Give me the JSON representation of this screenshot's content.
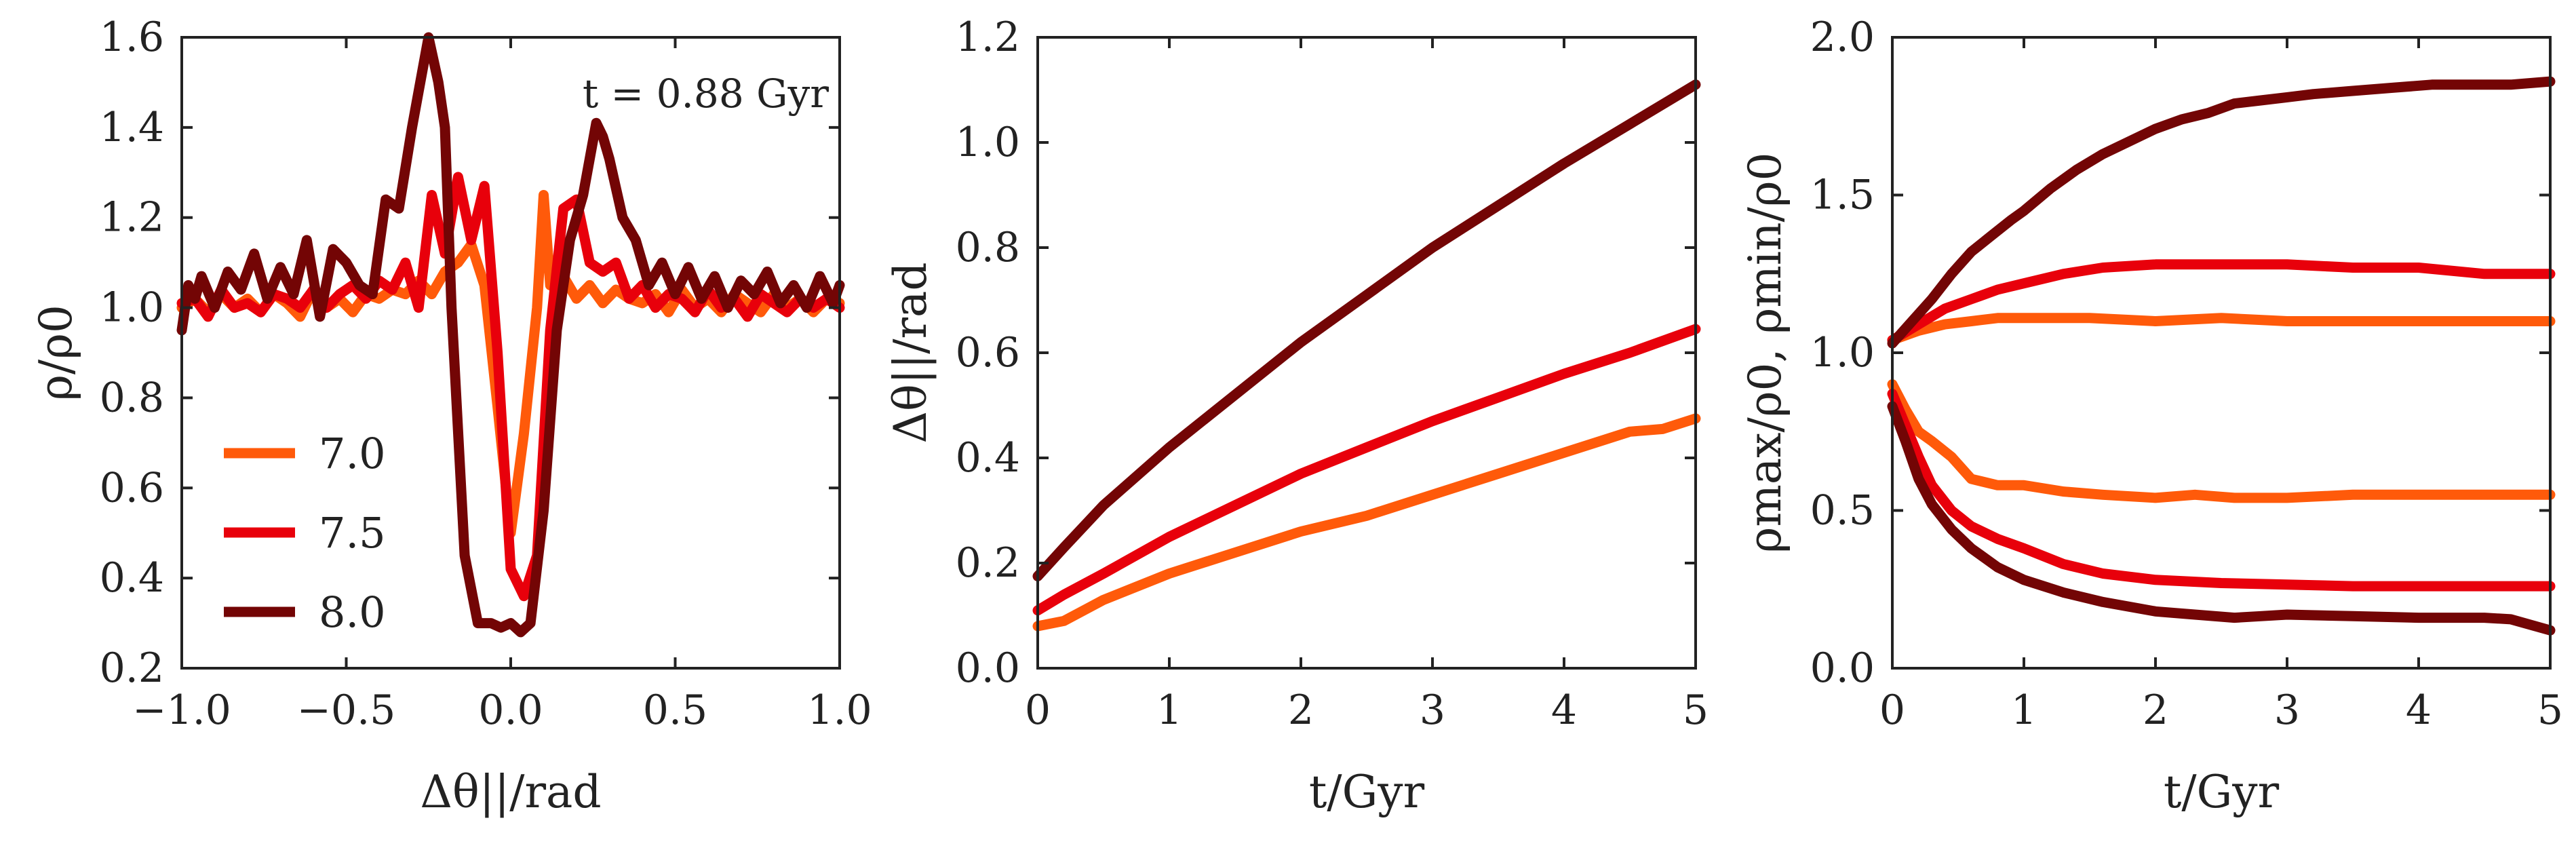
{
  "chart_data": [
    {
      "type": "line",
      "xlabel": "Δθ||/rad",
      "ylabel": "ρ/ρ0",
      "xlim": [
        -1.0,
        1.0
      ],
      "ylim": [
        0.2,
        1.6
      ],
      "xticks": [
        "−1.0",
        "−0.5",
        "0.0",
        "0.5",
        "1.0"
      ],
      "yticks": [
        "0.2",
        "0.4",
        "0.6",
        "0.8",
        "1.0",
        "1.2",
        "1.4",
        "1.6"
      ],
      "annotation": "t = 0.88 Gyr",
      "legend_position": "lower-left",
      "grid": false,
      "series": [
        {
          "name": "7.0",
          "color": "#ff5a0a",
          "x": [
            -1.0,
            -0.96,
            -0.92,
            -0.88,
            -0.84,
            -0.8,
            -0.76,
            -0.72,
            -0.68,
            -0.64,
            -0.6,
            -0.56,
            -0.52,
            -0.48,
            -0.44,
            -0.4,
            -0.36,
            -0.32,
            -0.28,
            -0.24,
            -0.2,
            -0.16,
            -0.12,
            -0.08,
            -0.04,
            0.0,
            0.04,
            0.08,
            0.1,
            0.12,
            0.16,
            0.2,
            0.24,
            0.28,
            0.32,
            0.36,
            0.4,
            0.44,
            0.48,
            0.52,
            0.56,
            0.6,
            0.64,
            0.68,
            0.72,
            0.76,
            0.8,
            0.84,
            0.88,
            0.92,
            0.96,
            1.0
          ],
          "y": [
            1.0,
            1.02,
            0.99,
            1.03,
            1.0,
            1.02,
            0.99,
            1.03,
            1.01,
            0.98,
            1.04,
            1.0,
            1.02,
            0.99,
            1.03,
            1.02,
            1.04,
            1.03,
            1.06,
            1.03,
            1.08,
            1.1,
            1.14,
            1.05,
            0.78,
            0.5,
            0.72,
            1.0,
            1.25,
            1.05,
            1.07,
            1.02,
            1.05,
            1.01,
            1.04,
            1.02,
            1.01,
            1.03,
            0.99,
            1.04,
            1.0,
            1.02,
            0.99,
            1.03,
            1.01,
            0.99,
            1.03,
            1.0,
            1.02,
            0.99,
            1.02,
            1.01
          ]
        },
        {
          "name": "7.5",
          "color": "#e8000b",
          "x": [
            -1.0,
            -0.96,
            -0.92,
            -0.88,
            -0.84,
            -0.8,
            -0.76,
            -0.72,
            -0.68,
            -0.64,
            -0.6,
            -0.56,
            -0.52,
            -0.48,
            -0.44,
            -0.4,
            -0.36,
            -0.32,
            -0.28,
            -0.24,
            -0.2,
            -0.16,
            -0.12,
            -0.08,
            -0.04,
            0.0,
            0.04,
            0.08,
            0.12,
            0.16,
            0.2,
            0.24,
            0.28,
            0.32,
            0.36,
            0.4,
            0.44,
            0.48,
            0.52,
            0.56,
            0.6,
            0.64,
            0.68,
            0.72,
            0.76,
            0.8,
            0.84,
            0.88,
            0.92,
            0.96,
            1.0
          ],
          "y": [
            1.01,
            1.02,
            0.98,
            1.04,
            1.0,
            1.01,
            0.99,
            1.03,
            1.02,
            1.0,
            1.04,
            1.0,
            1.03,
            1.05,
            1.02,
            1.06,
            1.04,
            1.1,
            1.0,
            1.25,
            1.12,
            1.29,
            1.15,
            1.27,
            0.9,
            0.42,
            0.36,
            0.45,
            0.95,
            1.22,
            1.24,
            1.1,
            1.08,
            1.1,
            1.02,
            1.05,
            1.0,
            1.03,
            1.02,
            0.99,
            1.04,
            1.0,
            1.02,
            0.98,
            1.03,
            1.01,
            0.99,
            1.02,
            1.0,
            1.02,
            1.0
          ]
        },
        {
          "name": "8.0",
          "color": "#730505",
          "x": [
            -1.0,
            -0.98,
            -0.96,
            -0.94,
            -0.9,
            -0.86,
            -0.82,
            -0.78,
            -0.74,
            -0.7,
            -0.66,
            -0.62,
            -0.58,
            -0.54,
            -0.5,
            -0.46,
            -0.42,
            -0.38,
            -0.34,
            -0.3,
            -0.28,
            -0.25,
            -0.22,
            -0.2,
            -0.18,
            -0.14,
            -0.1,
            -0.06,
            -0.03,
            0.0,
            0.03,
            0.06,
            0.1,
            0.14,
            0.18,
            0.22,
            0.26,
            0.28,
            0.3,
            0.34,
            0.38,
            0.42,
            0.46,
            0.5,
            0.54,
            0.58,
            0.62,
            0.66,
            0.7,
            0.74,
            0.78,
            0.82,
            0.86,
            0.9,
            0.94,
            0.98,
            1.0
          ],
          "y": [
            0.95,
            1.05,
            1.02,
            1.07,
            1.0,
            1.08,
            1.04,
            1.12,
            1.02,
            1.09,
            1.03,
            1.15,
            0.98,
            1.13,
            1.1,
            1.05,
            1.03,
            1.24,
            1.22,
            1.4,
            1.48,
            1.6,
            1.5,
            1.4,
            1.0,
            0.45,
            0.3,
            0.3,
            0.29,
            0.3,
            0.28,
            0.3,
            0.55,
            0.95,
            1.15,
            1.25,
            1.41,
            1.38,
            1.33,
            1.2,
            1.15,
            1.05,
            1.1,
            1.03,
            1.09,
            1.02,
            1.07,
            1.0,
            1.06,
            1.03,
            1.08,
            1.01,
            1.05,
            1.0,
            1.07,
            1.01,
            1.05
          ]
        }
      ]
    },
    {
      "type": "line",
      "xlabel": "t/Gyr",
      "ylabel": "Δθ||/rad",
      "xlim": [
        0,
        5
      ],
      "ylim": [
        0.0,
        1.2
      ],
      "xticks": [
        "0",
        "1",
        "2",
        "3",
        "4",
        "5"
      ],
      "yticks": [
        "0.0",
        "0.2",
        "0.4",
        "0.6",
        "0.8",
        "1.0",
        "1.2"
      ],
      "grid": false,
      "series": [
        {
          "color": "#ff5a0a",
          "x": [
            0,
            0.2,
            0.5,
            1.0,
            1.5,
            2.0,
            2.5,
            3.0,
            3.5,
            4.0,
            4.5,
            4.75,
            5.0
          ],
          "y": [
            0.08,
            0.09,
            0.13,
            0.18,
            0.22,
            0.26,
            0.29,
            0.33,
            0.37,
            0.41,
            0.45,
            0.455,
            0.475
          ]
        },
        {
          "color": "#e8000b",
          "x": [
            0,
            0.2,
            0.5,
            1.0,
            1.5,
            2.0,
            2.5,
            3.0,
            3.5,
            4.0,
            4.5,
            5.0
          ],
          "y": [
            0.11,
            0.14,
            0.18,
            0.25,
            0.31,
            0.37,
            0.42,
            0.47,
            0.515,
            0.56,
            0.6,
            0.645
          ]
        },
        {
          "color": "#730505",
          "x": [
            0,
            0.2,
            0.5,
            1.0,
            1.5,
            2.0,
            2.5,
            3.0,
            3.5,
            4.0,
            4.5,
            5.0
          ],
          "y": [
            0.175,
            0.23,
            0.31,
            0.42,
            0.52,
            0.62,
            0.71,
            0.8,
            0.88,
            0.96,
            1.035,
            1.11
          ]
        }
      ]
    },
    {
      "type": "line",
      "xlabel": "t/Gyr",
      "ylabel": "ρmax/ρ0, ρmin/ρ0",
      "xlim": [
        0,
        5
      ],
      "ylim": [
        0.0,
        2.0
      ],
      "xticks": [
        "0",
        "1",
        "2",
        "3",
        "4",
        "5"
      ],
      "yticks": [
        "0.0",
        "0.5",
        "1.0",
        "1.5",
        "2.0"
      ],
      "grid": false,
      "series": [
        {
          "color": "#ff5a0a",
          "x": [
            0,
            0.2,
            0.4,
            0.6,
            0.8,
            1.0,
            1.5,
            2.0,
            2.5,
            3.0,
            3.5,
            4.0,
            4.5,
            5.0
          ],
          "y": [
            1.04,
            1.07,
            1.09,
            1.1,
            1.11,
            1.11,
            1.11,
            1.1,
            1.11,
            1.1,
            1.1,
            1.1,
            1.1,
            1.1
          ]
        },
        {
          "color": "#e8000b",
          "x": [
            0,
            0.2,
            0.4,
            0.6,
            0.8,
            1.0,
            1.3,
            1.6,
            2.0,
            2.5,
            3.0,
            3.5,
            4.0,
            4.5,
            5.0
          ],
          "y": [
            1.04,
            1.09,
            1.14,
            1.17,
            1.2,
            1.22,
            1.25,
            1.27,
            1.28,
            1.28,
            1.28,
            1.27,
            1.27,
            1.25,
            1.25
          ]
        },
        {
          "color": "#730505",
          "x": [
            0,
            0.15,
            0.3,
            0.45,
            0.6,
            0.75,
            0.9,
            1.0,
            1.2,
            1.4,
            1.6,
            1.8,
            2.0,
            2.2,
            2.4,
            2.6,
            2.8,
            3.0,
            3.2,
            3.5,
            3.8,
            4.1,
            4.4,
            4.7,
            5.0
          ],
          "y": [
            1.03,
            1.1,
            1.17,
            1.25,
            1.32,
            1.37,
            1.42,
            1.45,
            1.52,
            1.58,
            1.63,
            1.67,
            1.71,
            1.74,
            1.76,
            1.79,
            1.8,
            1.81,
            1.82,
            1.83,
            1.84,
            1.85,
            1.85,
            1.85,
            1.86
          ]
        },
        {
          "color": "#ff5a0a",
          "x": [
            0,
            0.1,
            0.2,
            0.3,
            0.45,
            0.6,
            0.8,
            1.0,
            1.3,
            1.6,
            2.0,
            2.3,
            2.6,
            3.0,
            3.5,
            4.0,
            4.5,
            5.0
          ],
          "y": [
            0.9,
            0.82,
            0.75,
            0.72,
            0.67,
            0.6,
            0.58,
            0.58,
            0.56,
            0.55,
            0.54,
            0.55,
            0.54,
            0.54,
            0.55,
            0.55,
            0.55,
            0.55
          ]
        },
        {
          "color": "#e8000b",
          "x": [
            0,
            0.1,
            0.2,
            0.3,
            0.45,
            0.6,
            0.8,
            1.0,
            1.3,
            1.6,
            2.0,
            2.5,
            3.0,
            3.5,
            4.0,
            4.5,
            5.0
          ],
          "y": [
            0.87,
            0.77,
            0.67,
            0.58,
            0.5,
            0.45,
            0.41,
            0.38,
            0.33,
            0.3,
            0.28,
            0.27,
            0.265,
            0.26,
            0.26,
            0.26,
            0.26
          ]
        },
        {
          "color": "#730505",
          "x": [
            0,
            0.1,
            0.2,
            0.3,
            0.45,
            0.6,
            0.8,
            1.0,
            1.3,
            1.6,
            2.0,
            2.3,
            2.6,
            2.8,
            3.0,
            3.5,
            4.0,
            4.5,
            4.7,
            5.0
          ],
          "y": [
            0.83,
            0.72,
            0.6,
            0.52,
            0.44,
            0.38,
            0.32,
            0.28,
            0.24,
            0.21,
            0.18,
            0.17,
            0.16,
            0.165,
            0.17,
            0.165,
            0.16,
            0.16,
            0.155,
            0.12
          ]
        }
      ]
    }
  ]
}
